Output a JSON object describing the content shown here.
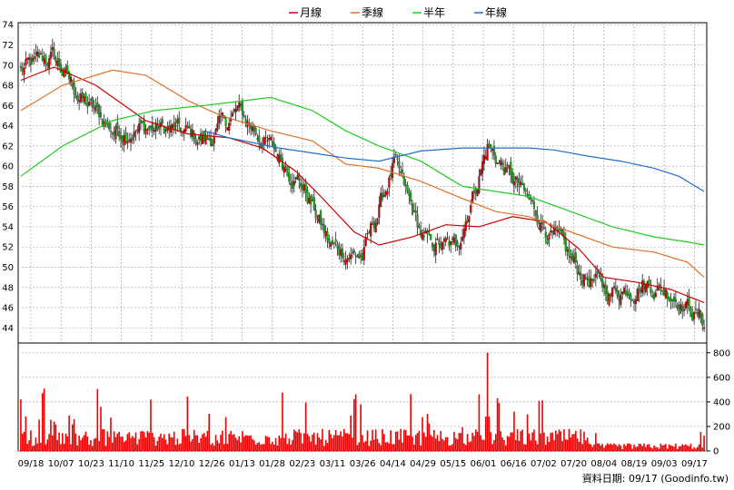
{
  "legend": [
    {
      "key": "ma20",
      "label": "月線",
      "color": "#cc0000"
    },
    {
      "key": "ma60",
      "label": "季線",
      "color": "#e0702a"
    },
    {
      "key": "ma120",
      "label": "半年",
      "color": "#22cc22"
    },
    {
      "key": "ma240",
      "label": "年線",
      "color": "#1e6fd0"
    }
  ],
  "footer": {
    "text": "資料日期: 09/17  (Goodinfo.tw)"
  },
  "colors": {
    "up": "#cc0000",
    "down": "#11aa11",
    "volume": "#ee0000",
    "grid": "#aaaaaa"
  },
  "chart_data": [
    {
      "type": "candlestick",
      "title": "",
      "x_tick_labels": [
        "09/18",
        "10/07",
        "10/23",
        "11/10",
        "11/25",
        "12/10",
        "12/26",
        "01/13",
        "01/28",
        "02/23",
        "03/11",
        "03/26",
        "04/14",
        "04/29",
        "05/15",
        "06/01",
        "06/16",
        "07/02",
        "07/20",
        "08/04",
        "08/19",
        "09/03",
        "09/17"
      ],
      "y_ticks": [
        44,
        46,
        48,
        50,
        52,
        54,
        56,
        58,
        60,
        62,
        64,
        66,
        68,
        70,
        72,
        74
      ],
      "ylim": [
        42.5,
        74.2
      ],
      "grid": true,
      "legend_position": "top",
      "close_anchors": [
        {
          "x": "09/18",
          "close": 69.5
        },
        {
          "x": "10/07",
          "close": 70.8
        },
        {
          "x": "10/23",
          "close": 66.5
        },
        {
          "x": "11/10",
          "close": 63.5
        },
        {
          "x": "11/25",
          "close": 63.8
        },
        {
          "x": "12/10",
          "close": 63.5
        },
        {
          "x": "12/26",
          "close": 62.5
        },
        {
          "x": "01/13",
          "close": 65.5
        },
        {
          "x": "01/28",
          "close": 62.0
        },
        {
          "x": "02/23",
          "close": 58.5
        },
        {
          "x": "03/11",
          "close": 52.0
        },
        {
          "x": "03/26",
          "close": 51.0
        },
        {
          "x": "04/14",
          "close": 60.2
        },
        {
          "x": "04/29",
          "close": 52.5
        },
        {
          "x": "05/15",
          "close": 51.8
        },
        {
          "x": "06/01",
          "close": 62.0
        },
        {
          "x": "06/16",
          "close": 58.0
        },
        {
          "x": "07/02",
          "close": 53.5
        },
        {
          "x": "07/20",
          "close": 49.5
        },
        {
          "x": "08/04",
          "close": 47.5
        },
        {
          "x": "08/19",
          "close": 48.5
        },
        {
          "x": "09/03",
          "close": 47.5
        },
        {
          "x": "09/17",
          "close": 44.6
        }
      ],
      "moving_averages": {
        "ma20": [
          [
            0,
            68.5
          ],
          [
            20,
            69.8
          ],
          [
            45,
            68.0
          ],
          [
            75,
            64.5
          ],
          [
            100,
            63.2
          ],
          [
            125,
            62.8
          ],
          [
            145,
            61.8
          ],
          [
            165,
            59.5
          ],
          [
            180,
            57.0
          ],
          [
            200,
            53.5
          ],
          [
            215,
            52.2
          ],
          [
            235,
            53.0
          ],
          [
            255,
            54.2
          ],
          [
            275,
            54.0
          ],
          [
            295,
            55.0
          ],
          [
            315,
            54.5
          ],
          [
            335,
            51.8
          ],
          [
            350,
            49.0
          ],
          [
            370,
            48.5
          ],
          [
            390,
            47.8
          ],
          [
            410,
            46.5
          ]
        ],
        "ma60": [
          [
            0,
            65.5
          ],
          [
            25,
            68.0
          ],
          [
            55,
            69.5
          ],
          [
            75,
            69.0
          ],
          [
            100,
            66.5
          ],
          [
            120,
            65.0
          ],
          [
            150,
            63.5
          ],
          [
            175,
            62.5
          ],
          [
            195,
            60.2
          ],
          [
            215,
            59.8
          ],
          [
            240,
            58.5
          ],
          [
            265,
            56.8
          ],
          [
            285,
            55.5
          ],
          [
            305,
            55.0
          ],
          [
            330,
            53.5
          ],
          [
            355,
            52.0
          ],
          [
            380,
            51.5
          ],
          [
            400,
            50.5
          ],
          [
            410,
            49.0
          ]
        ],
        "ma120": [
          [
            0,
            59.0
          ],
          [
            25,
            62.0
          ],
          [
            55,
            64.5
          ],
          [
            80,
            65.5
          ],
          [
            110,
            66.0
          ],
          [
            150,
            66.8
          ],
          [
            175,
            65.5
          ],
          [
            195,
            63.5
          ],
          [
            215,
            62.0
          ],
          [
            240,
            60.5
          ],
          [
            265,
            58.0
          ],
          [
            285,
            57.5
          ],
          [
            305,
            57.0
          ],
          [
            330,
            55.5
          ],
          [
            355,
            54.0
          ],
          [
            380,
            53.0
          ],
          [
            400,
            52.5
          ],
          [
            410,
            52.2
          ]
        ],
        "ma240": [
          [
            110,
            63.5
          ],
          [
            125,
            62.8
          ],
          [
            155,
            61.8
          ],
          [
            175,
            61.3
          ],
          [
            195,
            60.8
          ],
          [
            215,
            60.5
          ],
          [
            240,
            61.5
          ],
          [
            265,
            61.8
          ],
          [
            290,
            61.8
          ],
          [
            305,
            61.8
          ],
          [
            320,
            61.6
          ],
          [
            340,
            61.0
          ],
          [
            360,
            60.5
          ],
          [
            380,
            59.8
          ],
          [
            395,
            59.0
          ],
          [
            410,
            57.5
          ]
        ]
      }
    },
    {
      "type": "bar",
      "title": "",
      "series": [
        {
          "name": "",
          "description_level": "daily volume"
        }
      ],
      "y_ticks": [
        0,
        200,
        400,
        600,
        800
      ],
      "ylim": [
        0,
        880
      ],
      "notable_values": {
        "peak_near": "06/01",
        "peak_value": 800
      }
    }
  ]
}
